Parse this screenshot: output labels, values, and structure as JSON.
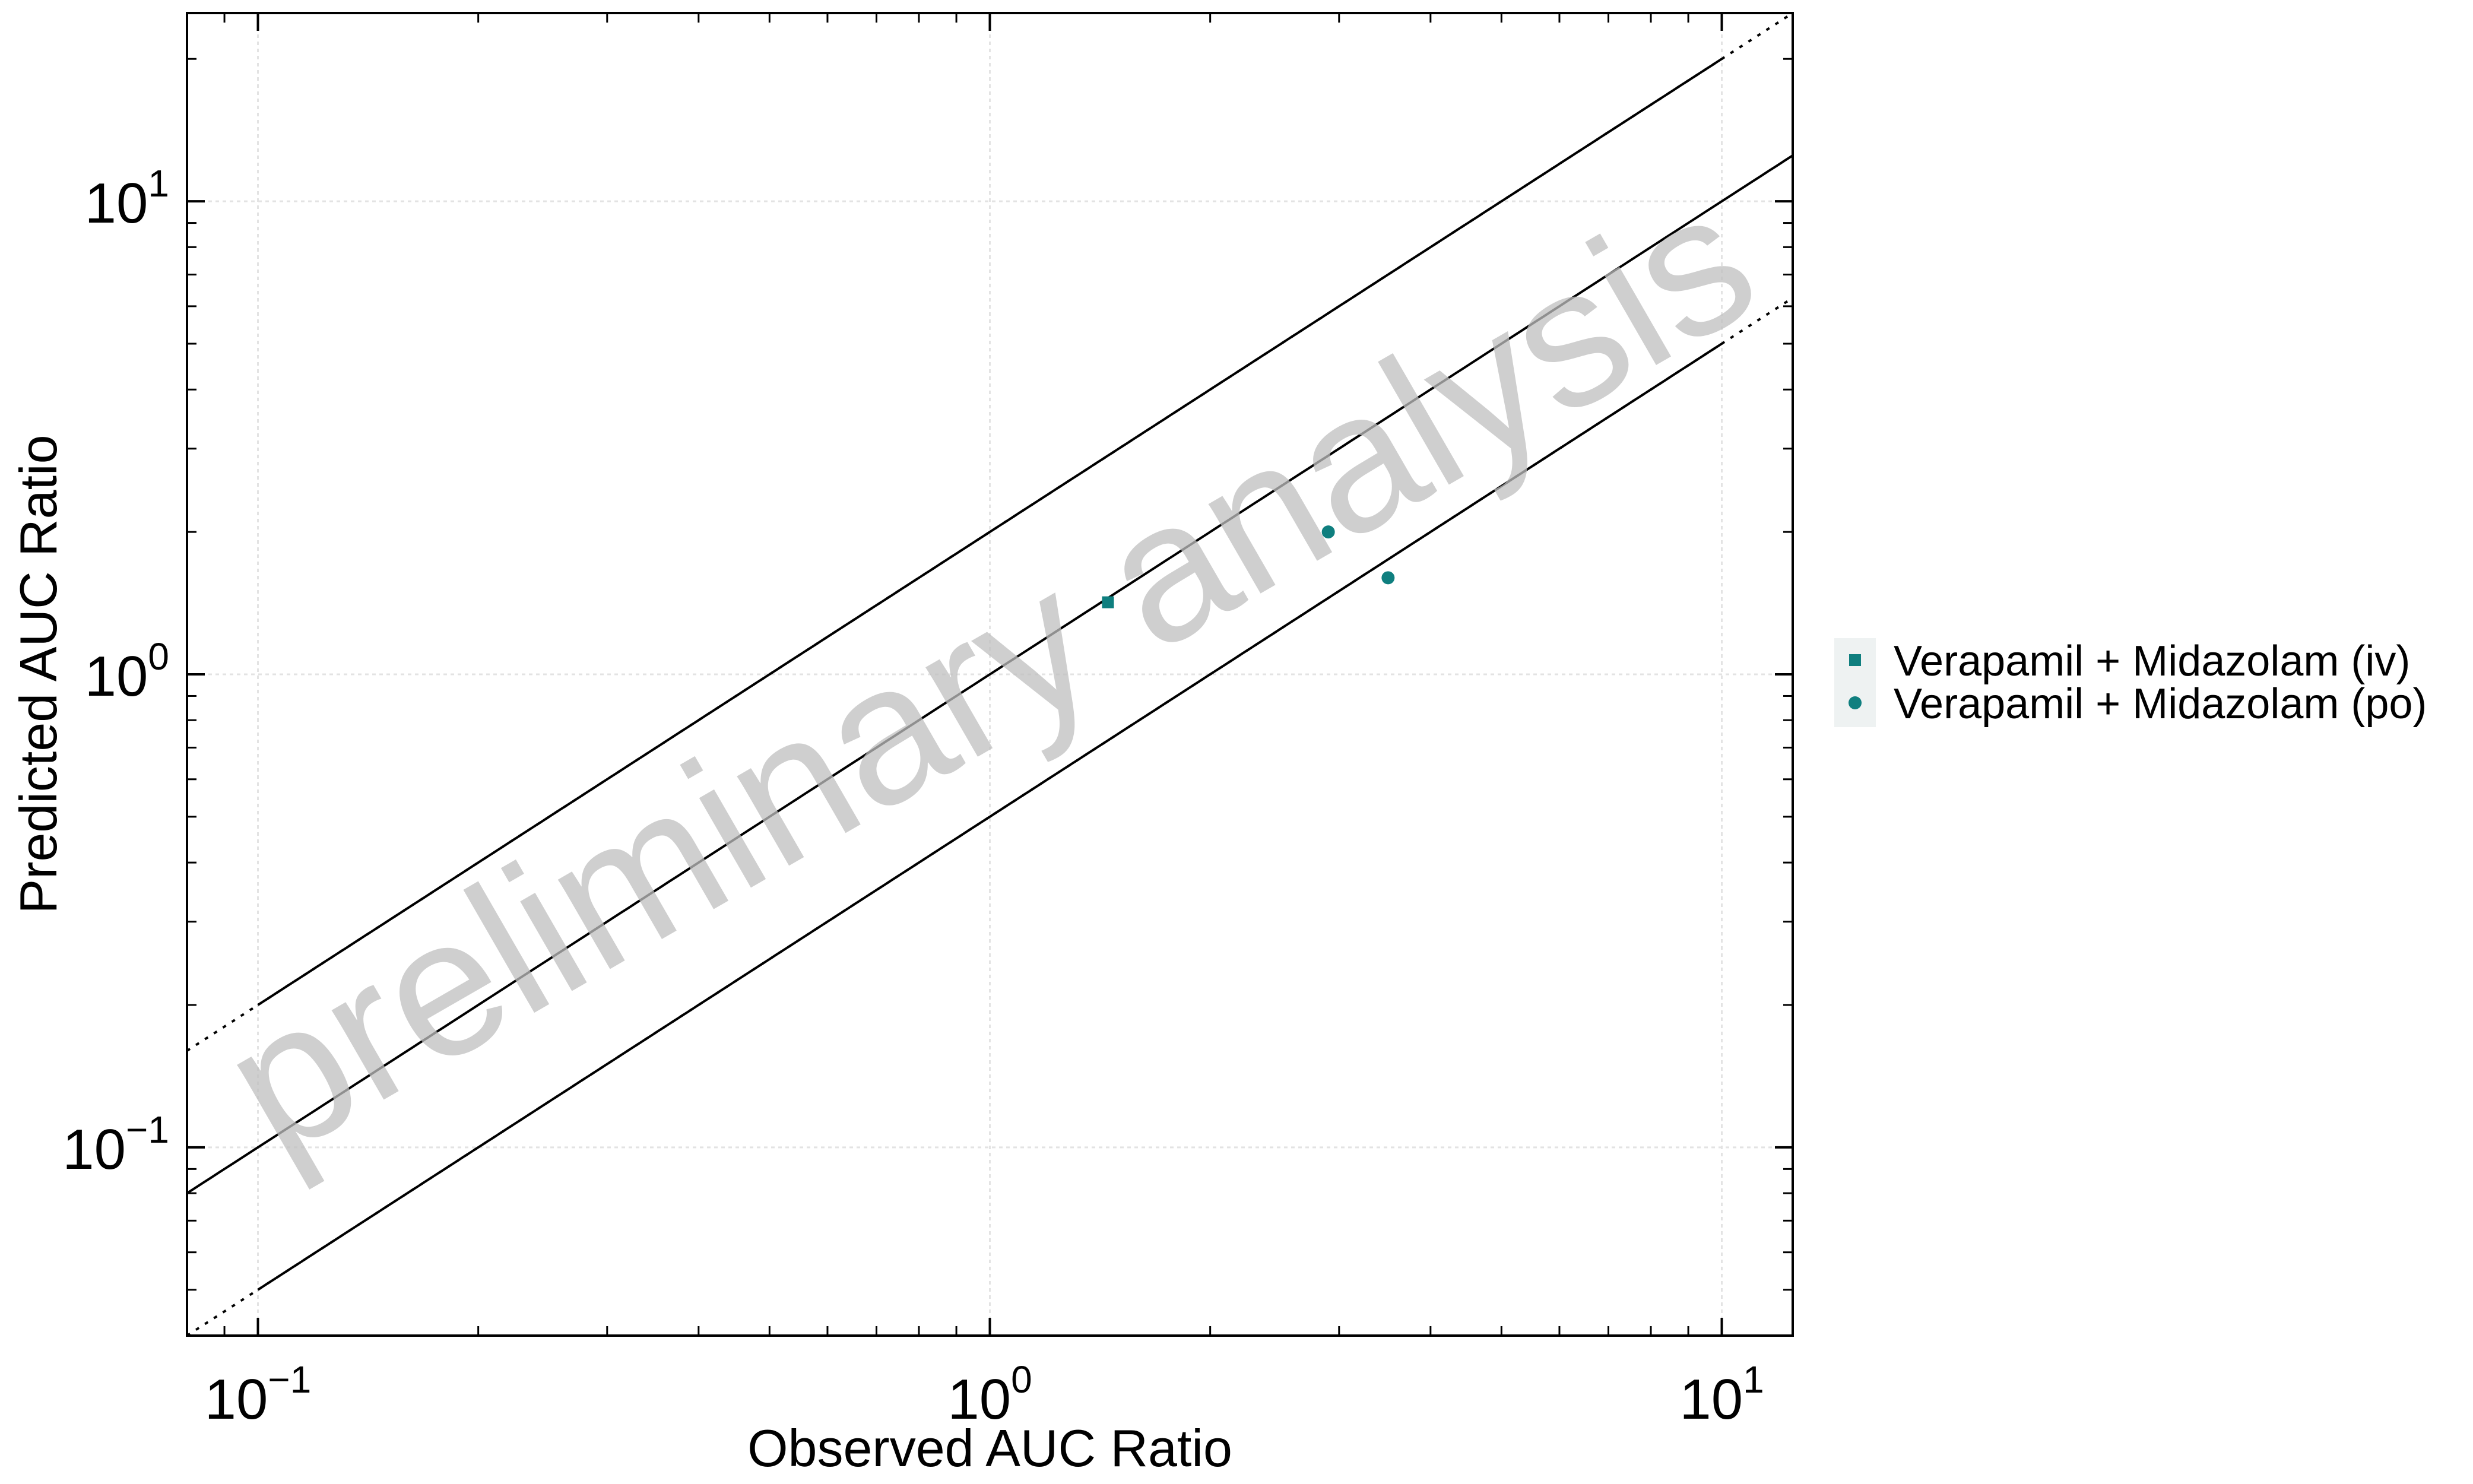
{
  "chart_data": {
    "type": "scatter",
    "xlabel": "Observed AUC Ratio",
    "ylabel": "Predicted AUC Ratio",
    "x_scale": "log",
    "y_scale": "log",
    "xlim": [
      0.08,
      12.5
    ],
    "ylim": [
      0.04,
      25
    ],
    "x_ticks": [
      {
        "base": "10",
        "exp": "−1",
        "value": 0.1
      },
      {
        "base": "10",
        "exp": "0",
        "value": 1
      },
      {
        "base": "10",
        "exp": "1",
        "value": 10
      }
    ],
    "y_ticks": [
      {
        "base": "10",
        "exp": "−1",
        "value": 0.1
      },
      {
        "base": "10",
        "exp": "0",
        "value": 1
      },
      {
        "base": "10",
        "exp": "1",
        "value": 10
      }
    ],
    "grid": true,
    "legend_position": "right",
    "watermark": "preliminary analysis",
    "reference_lines": [
      {
        "kind": "identity",
        "style": "solid"
      },
      {
        "kind": "2-fold",
        "style": "dotted"
      },
      {
        "kind": "Guest limits",
        "style": "solid",
        "delta": 2
      }
    ],
    "series": [
      {
        "name": "Verapamil + Midazolam (iv)",
        "marker": "square",
        "color": "#0f7f7f",
        "points": [
          {
            "x": 1.45,
            "y": 1.42
          }
        ]
      },
      {
        "name": "Verapamil + Midazolam (po)",
        "marker": "circle",
        "color": "#0f7f7f",
        "points": [
          {
            "x": 2.9,
            "y": 2.0
          },
          {
            "x": 3.5,
            "y": 1.6
          }
        ]
      }
    ]
  }
}
